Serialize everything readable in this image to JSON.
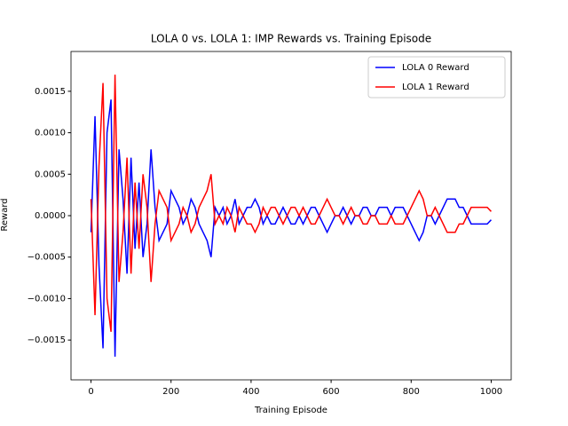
{
  "chart_data": {
    "type": "line",
    "title": "LOLA 0 vs. LOLA 1: IMP Rewards vs. Training Episode",
    "x_label": "Training Episode",
    "y_label": "Reward",
    "x": [
      0,
      10,
      20,
      30,
      40,
      50,
      60,
      70,
      80,
      90,
      100,
      110,
      120,
      130,
      140,
      150,
      160,
      170,
      180,
      190,
      200,
      210,
      220,
      230,
      240,
      250,
      260,
      270,
      280,
      290,
      300,
      310,
      320,
      330,
      340,
      350,
      360,
      370,
      380,
      390,
      400,
      410,
      420,
      430,
      440,
      450,
      460,
      470,
      480,
      490,
      500,
      510,
      520,
      530,
      540,
      550,
      560,
      570,
      580,
      590,
      600,
      610,
      620,
      630,
      640,
      650,
      660,
      670,
      680,
      690,
      700,
      710,
      720,
      730,
      740,
      750,
      760,
      770,
      780,
      790,
      800,
      810,
      820,
      830,
      840,
      850,
      860,
      870,
      880,
      890,
      900,
      910,
      920,
      930,
      940,
      950,
      960,
      970,
      980,
      990,
      1000
    ],
    "series": [
      {
        "name": "LOLA 0 Reward",
        "color": "#0000ff",
        "values": [
          -0.0002,
          0.0012,
          -0.0006,
          -0.0016,
          0.001,
          0.0014,
          -0.0017,
          0.0008,
          0.0002,
          -0.0007,
          0.0007,
          -0.0004,
          0.0004,
          -0.0005,
          -0.0001,
          0.0008,
          0.0001,
          -0.0003,
          -0.0002,
          -0.0001,
          0.0003,
          0.0002,
          0.0001,
          -0.0001,
          0,
          0.0002,
          0.0001,
          -0.0001,
          -0.0002,
          -0.0003,
          -0.0005,
          0.0001,
          0,
          0.0001,
          -0.0001,
          0,
          0.0002,
          -0.0001,
          0,
          0.0001,
          0.0001,
          0.0002,
          0.0001,
          -0.0001,
          0,
          -0.0001,
          -0.0001,
          0,
          0.0001,
          0,
          -0.0001,
          -0.0001,
          0,
          -0.0001,
          0,
          0.0001,
          0.0001,
          0,
          -0.0001,
          -0.0002,
          -0.0001,
          0,
          0,
          0.0001,
          0,
          -0.0001,
          0,
          0,
          0.0001,
          0.0001,
          0,
          0,
          0.0001,
          0.0001,
          0.0001,
          0,
          0.0001,
          0.0001,
          0.0001,
          0,
          -0.0001,
          -0.0002,
          -0.0003,
          -0.0002,
          0,
          0,
          -0.0001,
          0,
          0.0001,
          0.0002,
          0.0002,
          0.0002,
          0.0001,
          0.0001,
          0,
          -0.0001,
          -0.0001,
          -0.0001,
          -0.0001,
          -0.0001,
          -5e-05
        ]
      },
      {
        "name": "LOLA 1 Reward",
        "color": "#ff0000",
        "values": [
          0.0002,
          -0.0012,
          0.0006,
          0.0016,
          -0.001,
          -0.0014,
          0.0017,
          -0.0008,
          -0.0002,
          0.0007,
          -0.0007,
          0.0004,
          -0.0004,
          0.0005,
          0.0001,
          -0.0008,
          -0.0001,
          0.0003,
          0.0002,
          0.0001,
          -0.0003,
          -0.0002,
          -0.0001,
          0.0001,
          0,
          -0.0002,
          -0.0001,
          0.0001,
          0.0002,
          0.0003,
          0.0005,
          -0.0001,
          0,
          -0.0001,
          0.0001,
          0,
          -0.0002,
          0.0001,
          0,
          -0.0001,
          -0.0001,
          -0.0002,
          -0.0001,
          0.0001,
          0,
          0.0001,
          0.0001,
          0,
          -0.0001,
          0,
          0.0001,
          0.0001,
          0,
          0.0001,
          0,
          -0.0001,
          -0.0001,
          0,
          0.0001,
          0.0002,
          0.0001,
          0,
          0,
          -0.0001,
          0,
          0.0001,
          0,
          0,
          -0.0001,
          -0.0001,
          0,
          0,
          -0.0001,
          -0.0001,
          -0.0001,
          0,
          -0.0001,
          -0.0001,
          -0.0001,
          0,
          0.0001,
          0.0002,
          0.0003,
          0.0002,
          0,
          0,
          0.0001,
          0,
          -0.0001,
          -0.0002,
          -0.0002,
          -0.0002,
          -0.0001,
          -0.0001,
          0,
          0.0001,
          0.0001,
          0.0001,
          0.0001,
          0.0001,
          5e-05
        ]
      }
    ],
    "xlim": [
      -50,
      1050
    ],
    "ylim": [
      -0.00198,
      0.00198
    ],
    "xticks": [
      0,
      200,
      400,
      600,
      800,
      1000
    ],
    "yticks": [
      {
        "value": -0.0015,
        "label": "−0.0015"
      },
      {
        "value": -0.001,
        "label": "−0.0010"
      },
      {
        "value": -0.0005,
        "label": "−0.0005"
      },
      {
        "value": 0,
        "label": "0.0000"
      },
      {
        "value": 0.0005,
        "label": "0.0005"
      },
      {
        "value": 0.001,
        "label": "0.0010"
      },
      {
        "value": 0.0015,
        "label": "0.0015"
      }
    ],
    "legend": "upper right"
  }
}
